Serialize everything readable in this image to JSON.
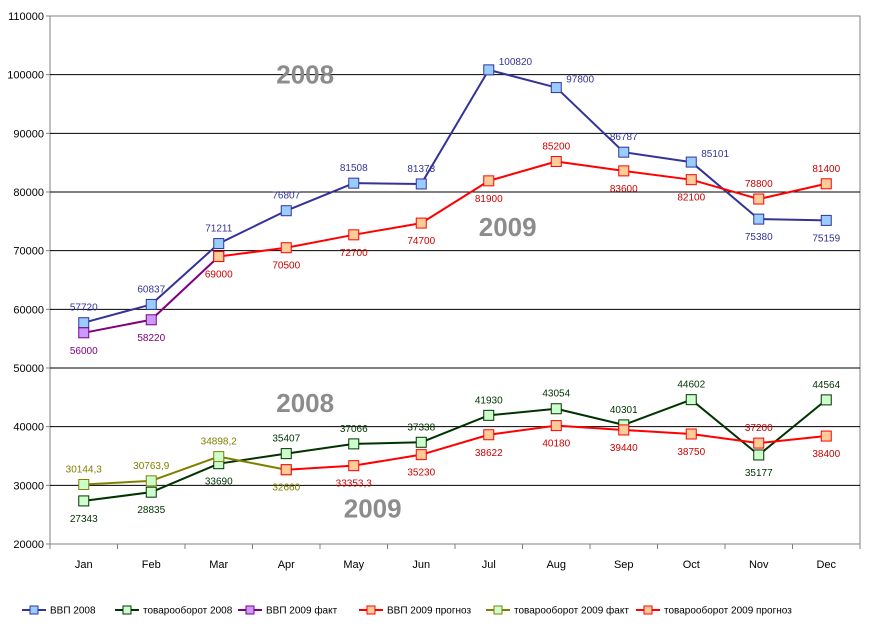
{
  "chart_data": {
    "type": "line",
    "categories": [
      "Jan",
      "Feb",
      "Mar",
      "Apr",
      "May",
      "Jun",
      "Jul",
      "Aug",
      "Sep",
      "Oct",
      "Nov",
      "Dec"
    ],
    "ylim": [
      20000,
      110000
    ],
    "y_ticks": [
      "20000",
      "30000",
      "40000",
      "50000",
      "60000",
      "70000",
      "80000",
      "90000",
      "100000",
      "110000"
    ],
    "grid": true,
    "legend_position": "bottom",
    "annotations": [
      {
        "text": "2008",
        "x": "Apr",
        "y": 98500
      },
      {
        "text": "2009",
        "x": "Jul",
        "y": 72500
      },
      {
        "text": "2008",
        "x": "Apr",
        "y": 42500
      },
      {
        "text": "2009",
        "x": "May",
        "y": 24500
      }
    ],
    "series": [
      {
        "name": "ВВП 2008",
        "color": "#333399",
        "marker_fill": "#99ccff",
        "label_color": "#333399",
        "x": [
          "Jan",
          "Feb",
          "Mar",
          "Apr",
          "May",
          "Jun",
          "Jul",
          "Aug",
          "Sep",
          "Oct",
          "Nov",
          "Dec"
        ],
        "values": [
          57720,
          60837,
          71211,
          76807,
          81508,
          81373,
          100820,
          97800,
          86787,
          85101,
          75380,
          75159
        ],
        "labels": [
          "57720",
          "60837",
          "71211",
          "76807",
          "81508",
          "81373",
          "100820",
          "97800",
          "86787",
          "85101",
          "75380",
          "75159"
        ],
        "label_pos": [
          "above",
          "above",
          "above",
          "above",
          "above",
          "above",
          "right",
          "right",
          "above",
          "right",
          "below",
          "below"
        ]
      },
      {
        "name": "товарооборот 2008",
        "color": "#003300",
        "marker_fill": "#ccffcc",
        "label_color": "#003300",
        "x": [
          "Jan",
          "Feb",
          "Mar",
          "Apr",
          "May",
          "Jun",
          "Jul",
          "Aug",
          "Sep",
          "Oct",
          "Nov",
          "Dec"
        ],
        "values": [
          27343,
          28835,
          33690,
          35407,
          37066,
          37338,
          41930,
          43054,
          40301,
          44602,
          35177,
          44564
        ],
        "labels": [
          "27343",
          "28835",
          "33690",
          "35407",
          "37066",
          "37338",
          "41930",
          "43054",
          "40301",
          "44602",
          "35177",
          "44564"
        ],
        "label_pos": [
          "below",
          "below",
          "below",
          "above",
          "above",
          "above",
          "above",
          "above",
          "above",
          "above",
          "below",
          "above"
        ]
      },
      {
        "name": "ВВП 2009 факт",
        "color": "#800080",
        "marker_fill": "#cc99ff",
        "label_color": "#800080",
        "x": [
          "Jan",
          "Feb",
          "Mar"
        ],
        "values": [
          56000,
          58220,
          69000
        ],
        "labels": [
          "56000",
          "58220",
          ""
        ],
        "label_pos": [
          "below",
          "below",
          "below"
        ]
      },
      {
        "name": "ВВП 2009 прогноз",
        "color": "#ff0000",
        "marker_fill": "#ffcc99",
        "label_color": "#cc0000",
        "x": [
          "Mar",
          "Apr",
          "May",
          "Jun",
          "Jul",
          "Aug",
          "Sep",
          "Oct",
          "Nov",
          "Dec"
        ],
        "values": [
          69000,
          70500,
          72700,
          74700,
          81900,
          85200,
          83600,
          82100,
          78800,
          81400
        ],
        "labels": [
          "69000",
          "70500",
          "72700",
          "74700",
          "81900",
          "85200",
          "83600",
          "82100",
          "78800",
          "81400"
        ],
        "label_pos": [
          "below",
          "below",
          "below",
          "below",
          "below",
          "above",
          "below",
          "below",
          "above",
          "above"
        ]
      },
      {
        "name": "товарооборот 2009 факт",
        "color": "#808000",
        "marker_fill": "#ccffcc",
        "label_color": "#808000",
        "x": [
          "Jan",
          "Feb",
          "Mar",
          "Apr"
        ],
        "values": [
          30144.3,
          30763.9,
          34898.2,
          32660
        ],
        "labels": [
          "30144,3",
          "30763,9",
          "34898,2",
          "32660"
        ],
        "label_pos": [
          "above",
          "above",
          "above",
          "below"
        ]
      },
      {
        "name": "товарооборот 2009 прогноз",
        "color": "#ff0000",
        "marker_fill": "#ffcc99",
        "label_color": "#cc0000",
        "x": [
          "Apr",
          "May",
          "Jun",
          "Jul",
          "Aug",
          "Sep",
          "Oct",
          "Nov",
          "Dec"
        ],
        "values": [
          32660,
          33353.3,
          35230,
          38622,
          40180,
          39440,
          38750,
          37200,
          38400
        ],
        "labels": [
          "",
          "33353,3",
          "35230",
          "38622",
          "40180",
          "39440",
          "38750",
          "37200",
          "38400"
        ],
        "label_pos": [
          "below",
          "below",
          "below",
          "below",
          "below",
          "below",
          "below",
          "above",
          "below"
        ]
      }
    ]
  }
}
